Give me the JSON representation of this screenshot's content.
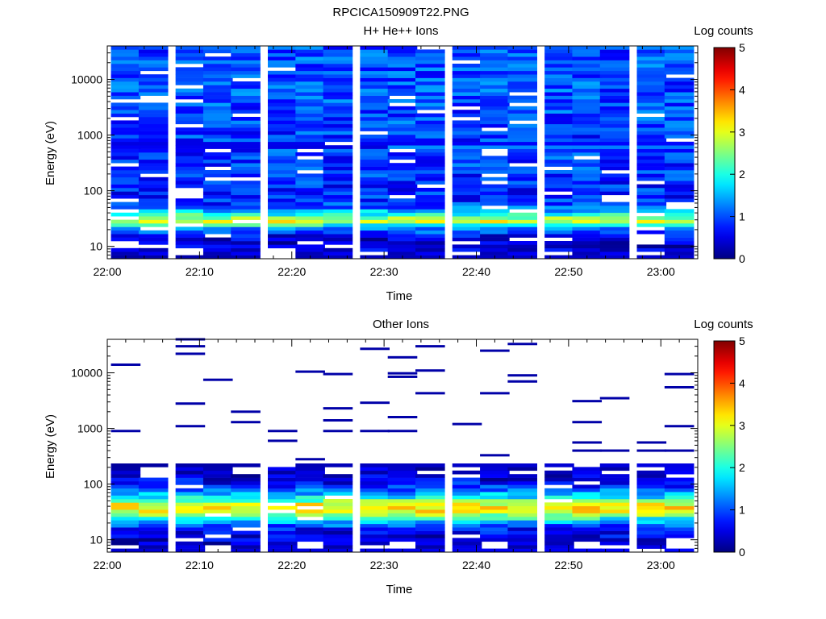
{
  "figure": {
    "title": "RPCICA150909T22.PNG"
  },
  "colorbar": {
    "label": "Log counts",
    "range": [
      0,
      5
    ],
    "ticks": [
      "0",
      "1",
      "2",
      "3",
      "4",
      "5"
    ]
  },
  "chart_data": [
    {
      "type": "heatmap",
      "title": "H+ He++ Ions",
      "xlabel": "Time",
      "ylabel": "Energy (eV)",
      "x_ticks": [
        "22:00",
        "22:10",
        "22:20",
        "22:30",
        "22:40",
        "22:50",
        "23:00"
      ],
      "x_range": [
        "22:00",
        "23:04"
      ],
      "y_scale": "log",
      "y_range": [
        6,
        40000
      ],
      "y_ticks": [
        "10",
        "100",
        "1000",
        "10000"
      ],
      "z_label": "Log counts",
      "z_range": [
        0,
        5
      ],
      "time_bins": [
        "22:02",
        "22:05",
        "22:09",
        "22:12",
        "22:15",
        "22:19",
        "22:22",
        "22:25",
        "22:29",
        "22:32",
        "22:35",
        "22:39",
        "22:42",
        "22:45",
        "22:49",
        "22:52",
        "22:55",
        "22:59",
        "23:02"
      ],
      "energy_profile": {
        "energy_eV": [
          8,
          12,
          16,
          22,
          28,
          35,
          45,
          55,
          75,
          100,
          300,
          1000,
          3000,
          10000,
          30000
        ],
        "log_counts": [
          0.4,
          0.3,
          0.6,
          1.5,
          2.9,
          2.3,
          1.4,
          0.9,
          0.8,
          0.8,
          0.9,
          0.9,
          1.0,
          1.0,
          1.0
        ]
      }
    },
    {
      "type": "heatmap",
      "title": "Other Ions",
      "xlabel": "Time",
      "ylabel": "Energy (eV)",
      "x_ticks": [
        "22:00",
        "22:10",
        "22:20",
        "22:30",
        "22:40",
        "22:50",
        "23:00"
      ],
      "x_range": [
        "22:00",
        "23:04"
      ],
      "y_scale": "log",
      "y_range": [
        6,
        40000
      ],
      "y_ticks": [
        "10",
        "100",
        "1000",
        "10000"
      ],
      "z_label": "Log counts",
      "z_range": [
        0,
        5
      ],
      "time_bins": [
        "22:02",
        "22:05",
        "22:09",
        "22:12",
        "22:15",
        "22:19",
        "22:22",
        "22:25",
        "22:29",
        "22:32",
        "22:35",
        "22:39",
        "22:42",
        "22:45",
        "22:49",
        "22:52",
        "22:55",
        "22:59",
        "23:02"
      ],
      "energy_profile": {
        "energy_eV": [
          8,
          12,
          16,
          22,
          28,
          35,
          45,
          55,
          75,
          100,
          150,
          200
        ],
        "log_counts": [
          0.3,
          0.5,
          0.7,
          1.6,
          2.6,
          3.3,
          3.0,
          2.0,
          1.2,
          0.7,
          0.3,
          0.2
        ]
      },
      "sparse_high_energy_lines_eV": [
        30000,
        3500,
        1600,
        900,
        400,
        280,
        33000,
        2300,
        900,
        600,
        400,
        9800,
        1200,
        900,
        4300,
        1100,
        400,
        30000,
        25000,
        11000,
        7500,
        2900,
        1300,
        900,
        10500,
        9500,
        2000,
        1400,
        900,
        9500,
        8500,
        7000,
        560,
        40000,
        22000,
        19000,
        14000,
        9000,
        5500,
        4300,
        2800,
        1300,
        1100,
        3100,
        560,
        27000,
        400,
        330
      ]
    }
  ]
}
